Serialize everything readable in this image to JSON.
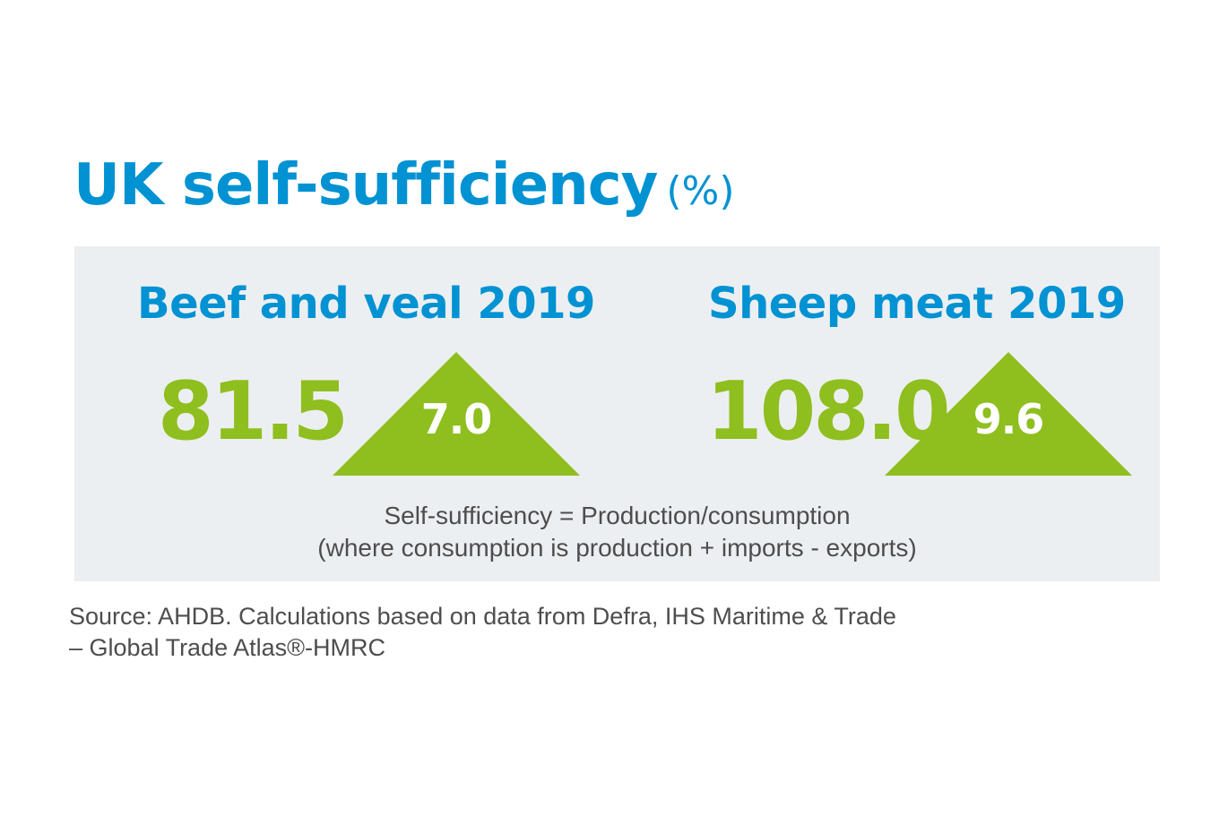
{
  "title": {
    "main": "UK self-sufficiency",
    "unit": "(%)"
  },
  "blocks": [
    {
      "heading": "Beef and veal 2019",
      "value": "81.5",
      "change": "7.0",
      "change_direction": "up"
    },
    {
      "heading": "Sheep meat 2019",
      "value": "108.0",
      "change": "9.6",
      "change_direction": "up"
    }
  ],
  "formula": {
    "line1": "Self-sufficiency = Production/consumption",
    "line2": "(where consumption is production + imports - exports)"
  },
  "source": {
    "line1": "Source: AHDB. Calculations based on data from Defra, IHS Maritime & Trade",
    "line2": "– Global Trade Atlas®-HMRC"
  },
  "colors": {
    "brand_blue": "#0092d2",
    "highlight_green": "#8fbe1f",
    "panel_grey": "#eceff1",
    "body_text": "#4d4d4d"
  }
}
